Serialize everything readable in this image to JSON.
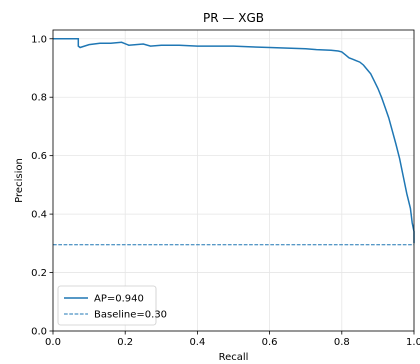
{
  "chart_data": {
    "type": "line",
    "title": "PR — XGB",
    "xlabel": "Recall",
    "ylabel": "Precision",
    "xlim": [
      0.0,
      1.0
    ],
    "ylim": [
      0.0,
      1.03
    ],
    "xticks": [
      "0.0",
      "0.2",
      "0.4",
      "0.6",
      "0.8",
      "1.0"
    ],
    "yticks": [
      "0.0",
      "0.2",
      "0.4",
      "0.6",
      "0.8",
      "1.0"
    ],
    "grid": true,
    "legend_position": "lower-left",
    "series": [
      {
        "name": "AP=0.940",
        "color": "#1f77b4",
        "style": "solid",
        "x": [
          0.0,
          0.07,
          0.07,
          0.075,
          0.1,
          0.13,
          0.16,
          0.19,
          0.21,
          0.25,
          0.27,
          0.3,
          0.35,
          0.4,
          0.45,
          0.5,
          0.55,
          0.6,
          0.65,
          0.7,
          0.73,
          0.77,
          0.79,
          0.8,
          0.81,
          0.82,
          0.83,
          0.84,
          0.85,
          0.86,
          0.87,
          0.88,
          0.89,
          0.9,
          0.91,
          0.92,
          0.93,
          0.94,
          0.95,
          0.96,
          0.97,
          0.98,
          0.99,
          0.995,
          1.0,
          1.0
        ],
        "y": [
          1.0,
          1.0,
          0.975,
          0.97,
          0.98,
          0.985,
          0.985,
          0.988,
          0.978,
          0.982,
          0.975,
          0.978,
          0.978,
          0.975,
          0.975,
          0.975,
          0.972,
          0.97,
          0.968,
          0.966,
          0.963,
          0.961,
          0.958,
          0.955,
          0.945,
          0.935,
          0.93,
          0.925,
          0.92,
          0.91,
          0.895,
          0.88,
          0.855,
          0.83,
          0.8,
          0.765,
          0.73,
          0.685,
          0.64,
          0.59,
          0.53,
          0.47,
          0.42,
          0.37,
          0.34,
          0.3
        ]
      },
      {
        "name": "Baseline=0.30",
        "color": "#1f77b4",
        "style": "dashed",
        "x": [
          0.0,
          1.0
        ],
        "y": [
          0.295,
          0.295
        ]
      }
    ]
  }
}
